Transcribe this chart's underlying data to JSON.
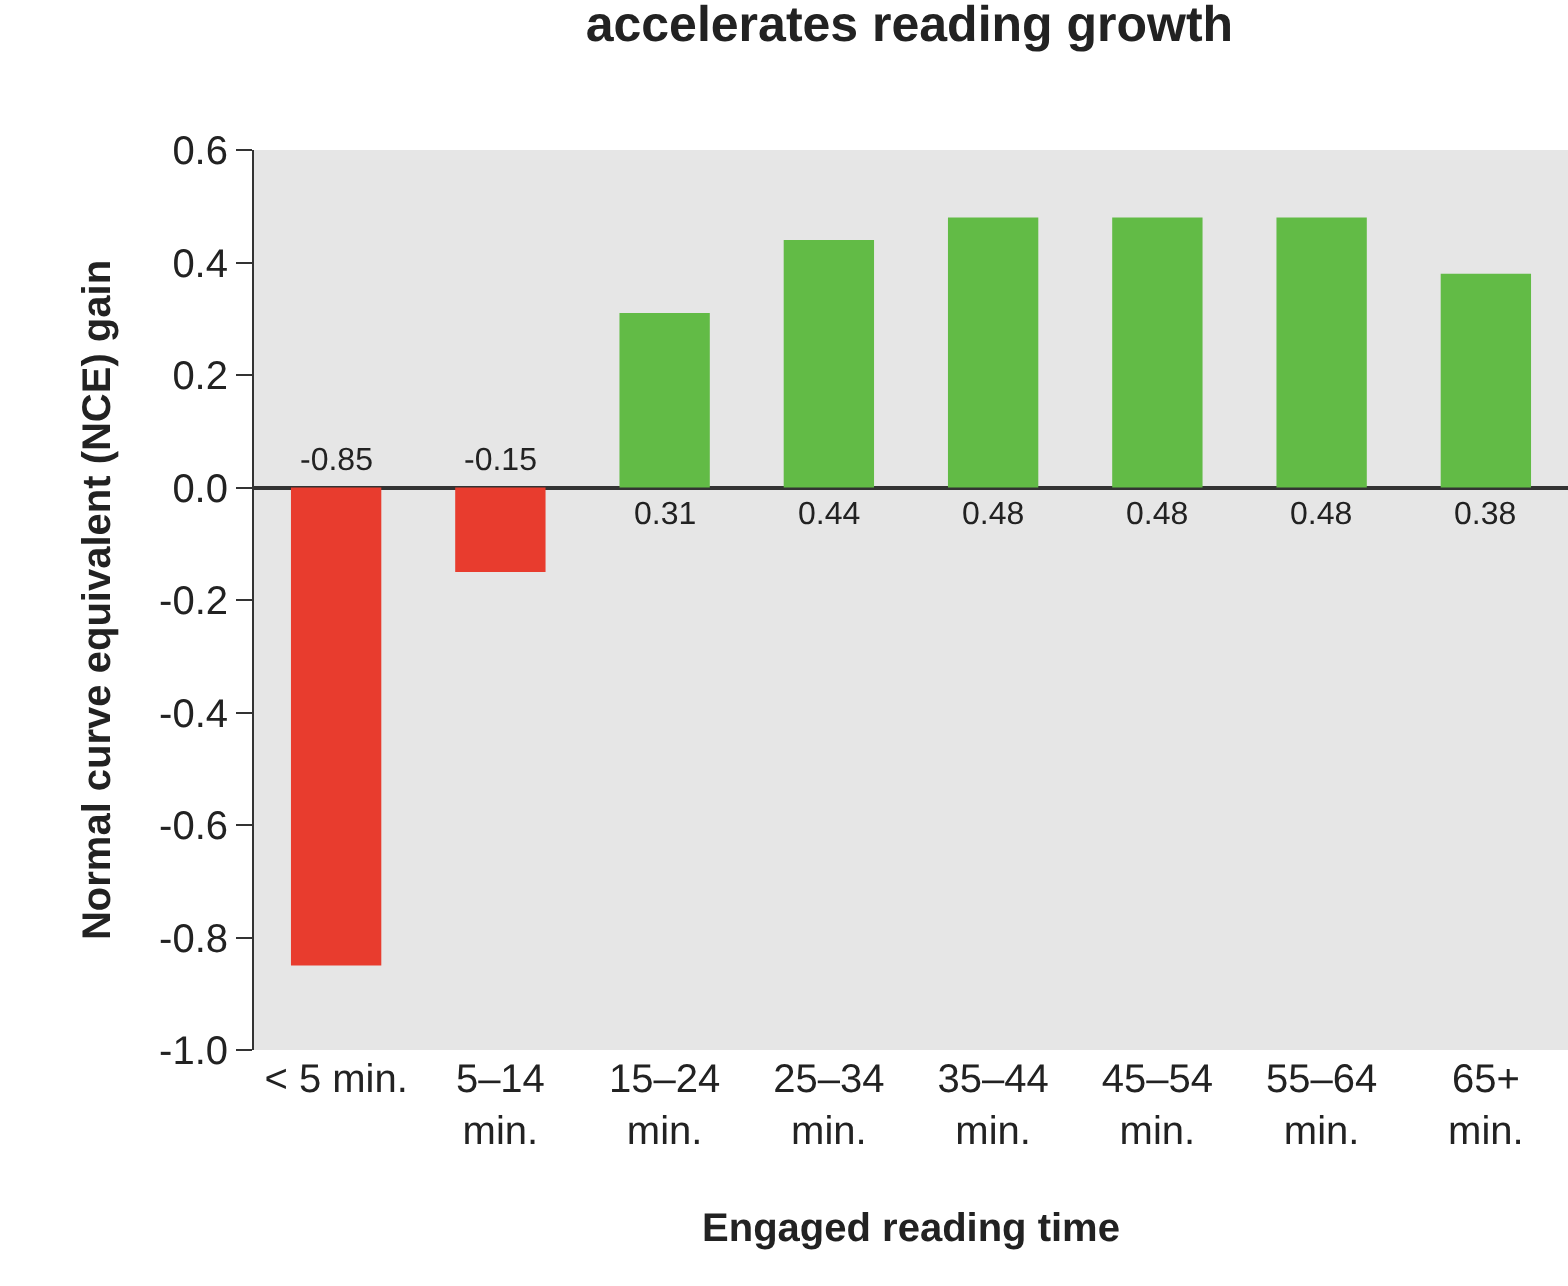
{
  "chart_data": {
    "type": "bar",
    "title": "accelerates reading growth",
    "xlabel": "Engaged reading time",
    "ylabel": "Normal curve equivalent (NCE) gain",
    "categories": [
      "< 5 min.",
      "5–14\nmin.",
      "15–24\nmin.",
      "25–34\nmin.",
      "35–44\nmin.",
      "45–54\nmin.",
      "55–64\nmin.",
      "65+\nmin."
    ],
    "values": [
      -0.85,
      -0.15,
      0.31,
      0.44,
      0.48,
      0.48,
      0.48,
      0.38
    ],
    "colors": [
      "#e83c2e",
      "#e83c2e",
      "#62bb46",
      "#62bb46",
      "#62bb46",
      "#62bb46",
      "#62bb46",
      "#62bb46"
    ],
    "ylim": [
      -1.0,
      0.6
    ],
    "yticks": [
      {
        "value": 0.6,
        "label": "0.6"
      },
      {
        "value": 0.4,
        "label": "0.4"
      },
      {
        "value": 0.2,
        "label": "0.2"
      },
      {
        "value": 0,
        "label": "0.0"
      },
      {
        "value": -0.2,
        "label": "-0.2"
      },
      {
        "value": -0.4,
        "label": "-0.4"
      },
      {
        "value": -0.6,
        "label": "-0.6"
      },
      {
        "value": -0.8,
        "label": "-0.8"
      },
      {
        "value": -1.0,
        "label": "-1.0"
      }
    ],
    "data_labels": true,
    "legend": false
  }
}
